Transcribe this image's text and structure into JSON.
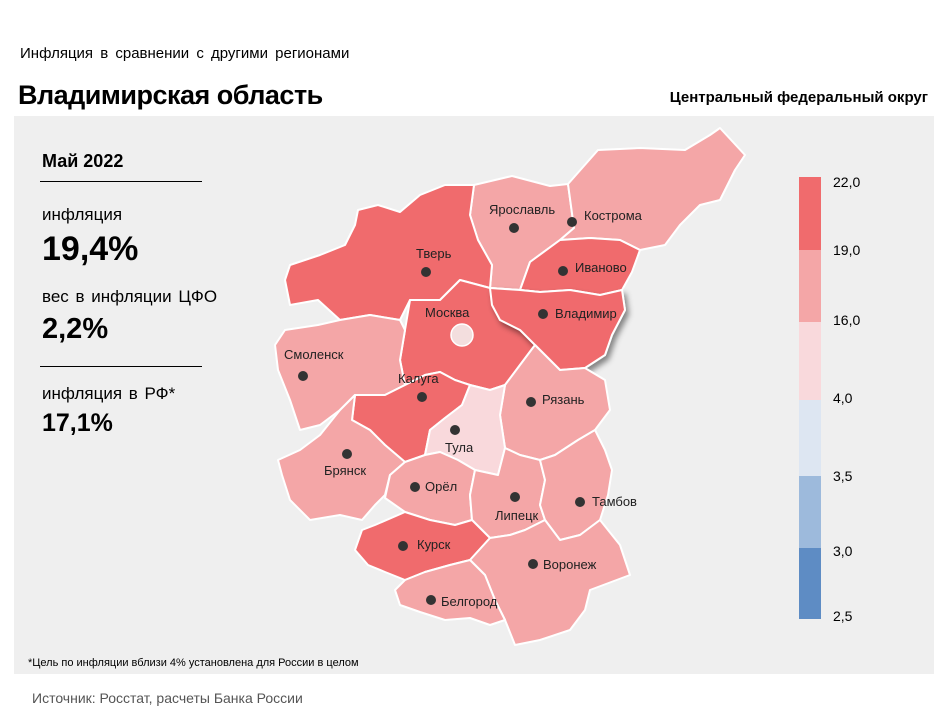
{
  "header": {
    "subtitle": "Инфляция в сравнении с другими регионами",
    "title": "Владимирская область",
    "district": "Центральный федеральный округ"
  },
  "info": {
    "period": "Май 2022",
    "inflation_label": "инфляция",
    "inflation_value": "19,4%",
    "weight_label": "вес в инфляции ЦФО",
    "weight_value": "2,2%",
    "rf_label": "инфляция в РФ*",
    "rf_value": "17,1%"
  },
  "footnote": "*Цель по инфляции вблизи 4% установлена для России в целом",
  "source": "Источник: Росстат, расчеты Банка России",
  "legend": {
    "ticks": [
      "22,0",
      "19,0",
      "16,0",
      "4,0",
      "3,5",
      "3,0",
      "2,5"
    ],
    "colors": [
      "#f06b6d",
      "#f4a6a7",
      "#f9d9dc",
      "#dde6f2",
      "#9dbadc",
      "#5e8cc4"
    ]
  },
  "regions": [
    {
      "name": "Ярославль",
      "level": "mid",
      "color": "#f4a6a7"
    },
    {
      "name": "Кострома",
      "level": "mid",
      "color": "#f4a6a7"
    },
    {
      "name": "Тверь",
      "level": "high",
      "color": "#f06b6d"
    },
    {
      "name": "Иваново",
      "level": "high",
      "color": "#f06b6d"
    },
    {
      "name": "Москва",
      "level": "high",
      "color": "#f06b6d"
    },
    {
      "name": "Владимир",
      "level": "high",
      "color": "#f06b6d"
    },
    {
      "name": "Смоленск",
      "level": "mid",
      "color": "#f4a6a7"
    },
    {
      "name": "Калуга",
      "level": "high",
      "color": "#f06b6d"
    },
    {
      "name": "Рязань",
      "level": "mid",
      "color": "#f4a6a7"
    },
    {
      "name": "Тула",
      "level": "low",
      "color": "#f9d9dc"
    },
    {
      "name": "Брянск",
      "level": "mid",
      "color": "#f4a6a7"
    },
    {
      "name": "Орёл",
      "level": "mid",
      "color": "#f4a6a7"
    },
    {
      "name": "Липецк",
      "level": "mid",
      "color": "#f4a6a7"
    },
    {
      "name": "Тамбов",
      "level": "mid",
      "color": "#f4a6a7"
    },
    {
      "name": "Курск",
      "level": "high",
      "color": "#f06b6d"
    },
    {
      "name": "Воронеж",
      "level": "mid",
      "color": "#f4a6a7"
    },
    {
      "name": "Белгород",
      "level": "mid",
      "color": "#f4a6a7"
    }
  ]
}
